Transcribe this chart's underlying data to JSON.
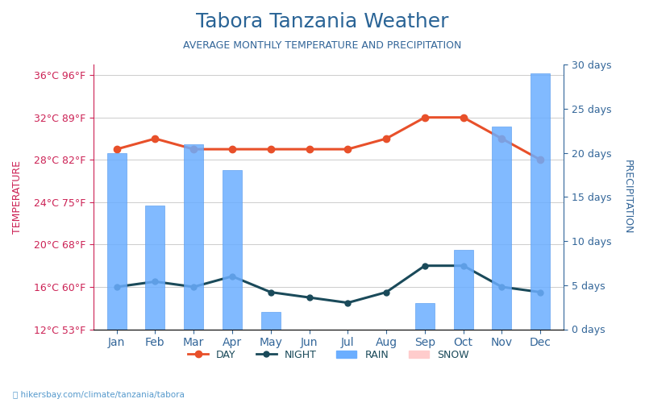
{
  "title": "Tabora Tanzania Weather",
  "subtitle": "AVERAGE MONTHLY TEMPERATURE AND PRECIPITATION",
  "months": [
    "Jan",
    "Feb",
    "Mar",
    "Apr",
    "May",
    "Jun",
    "Jul",
    "Aug",
    "Sep",
    "Oct",
    "Nov",
    "Dec"
  ],
  "day_temp": [
    29,
    30,
    29,
    29,
    29,
    29,
    29,
    30,
    32,
    32,
    30,
    28
  ],
  "night_temp": [
    16,
    16.5,
    16,
    17,
    15.5,
    15,
    14.5,
    15.5,
    18,
    18,
    16,
    15.5
  ],
  "rain_days": [
    20,
    14,
    21,
    18,
    2,
    0,
    0,
    0,
    3,
    9,
    23,
    29
  ],
  "temp_ylim": [
    12,
    37
  ],
  "rain_ylim": [
    0,
    30
  ],
  "temp_ticks": [
    12,
    16,
    20,
    24,
    28,
    32,
    36
  ],
  "temp_labels_left": [
    "12°C 53°F",
    "16°C 60°F",
    "20°C 68°F",
    "24°C 75°F",
    "28°C 82°F",
    "32°C 89°F",
    "36°C 96°F"
  ],
  "rain_ticks": [
    0,
    5,
    10,
    15,
    20,
    25,
    30
  ],
  "rain_labels_right": [
    "0 days",
    "5 days",
    "10 days",
    "15 days",
    "20 days",
    "25 days",
    "30 days"
  ],
  "day_color": "#e8502a",
  "night_color": "#1a4a5a",
  "bar_color": "#6baeff",
  "bar_edge_color": "#5599ee",
  "title_color": "#2a6496",
  "subtitle_color": "#336699",
  "left_label_color": "#cc2255",
  "right_label_color": "#336699",
  "month_label_color": "#336699",
  "bg_color": "#ffffff",
  "grid_color": "#cccccc",
  "watermark": "hikersbay.com/climate/tanzania/tabora",
  "ylabel_left": "TEMPERATURE",
  "ylabel_right": "PRECIPITATION"
}
